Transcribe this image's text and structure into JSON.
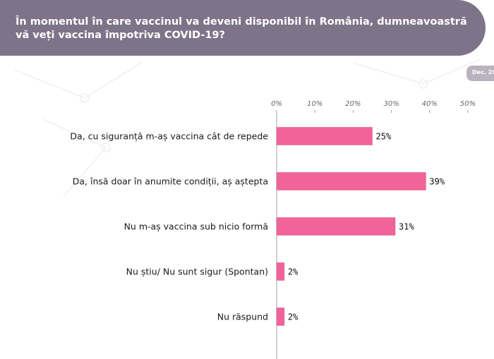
{
  "header": {
    "title_line1": "În momentul în care vaccinul va deveni disponibil în România, dumneavoastră",
    "title_line2": "vă veți vaccina împotriva COVID-19?",
    "date_tab": "Dec. 20"
  },
  "colors": {
    "header_band": "#7e7388",
    "bar": "#f06499",
    "bar_border": "#d94f85",
    "axis": "#a0a0a0"
  },
  "chart_data": {
    "type": "bar",
    "orientation": "horizontal",
    "title": "În momentul în care vaccinul va deveni disponibil în România, dumneavoastră vă veți vaccina împotriva COVID-19?",
    "categories": [
      "Da, cu siguranță m-aș vaccina cât de repede",
      "Da, însă doar în anumite condiții, aș aștepta",
      "Nu m-aș vaccina sub nicio formă",
      "Nu știu/ Nu sunt sigur (Spontan)",
      "Nu răspund"
    ],
    "values": [
      25,
      39,
      31,
      2,
      2
    ],
    "value_labels": [
      "25%",
      "39%",
      "31%",
      "2%",
      "2%"
    ],
    "xlim": [
      0,
      50
    ],
    "ticks": [
      0,
      10,
      20,
      30,
      40,
      50
    ],
    "tick_labels": [
      "0%",
      "10%",
      "20%",
      "30%",
      "40%",
      "50%"
    ],
    "tick_position": "top",
    "grid": false,
    "legend": "none"
  }
}
